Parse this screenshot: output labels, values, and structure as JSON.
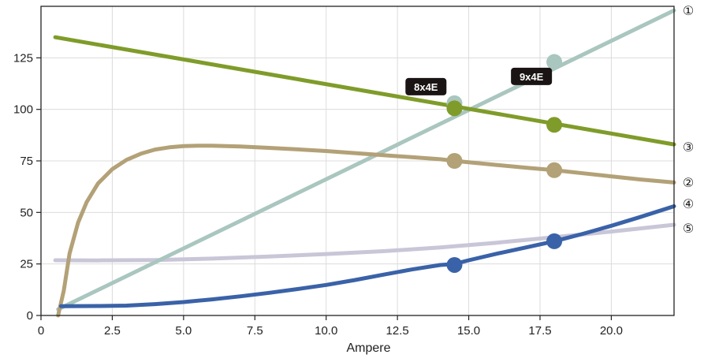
{
  "chart_data": {
    "type": "line",
    "title": "",
    "xlabel": "Ampere",
    "ylabel": "",
    "xlim": [
      0,
      22.2
    ],
    "ylim": [
      0,
      150
    ],
    "grid": true,
    "x_ticks": [
      "0",
      "2.5",
      "5.0",
      "7.5",
      "10.0",
      "12.5",
      "15.0",
      "17.5",
      "20.0"
    ],
    "x_tick_values": [
      0,
      2.5,
      5.0,
      7.5,
      10.0,
      12.5,
      15.0,
      17.5,
      20.0
    ],
    "y_ticks": [
      "0",
      "25",
      "50",
      "75",
      "100",
      "125"
    ],
    "y_tick_values": [
      0,
      25,
      50,
      75,
      100,
      125
    ],
    "series": [
      {
        "name": "①",
        "color": "#a9c6bf",
        "points": [
          [
            0.6,
            3
          ],
          [
            22.2,
            148
          ]
        ],
        "markers": [
          [
            14.5,
            103
          ],
          [
            18.0,
            123
          ]
        ]
      },
      {
        "name": "③",
        "color": "#7f9c2a",
        "points": [
          [
            0.5,
            135
          ],
          [
            22.2,
            83
          ]
        ],
        "markers": [
          [
            14.5,
            100.5
          ],
          [
            18.0,
            92.5
          ]
        ]
      },
      {
        "name": "②",
        "color": "#b3a177",
        "points": [
          [
            0.6,
            0
          ],
          [
            0.8,
            12
          ],
          [
            1.0,
            30
          ],
          [
            1.3,
            45
          ],
          [
            1.6,
            55
          ],
          [
            2.0,
            64
          ],
          [
            2.5,
            71
          ],
          [
            3.0,
            75.5
          ],
          [
            3.5,
            78.5
          ],
          [
            4.0,
            80.5
          ],
          [
            4.5,
            81.6
          ],
          [
            5.0,
            82.2
          ],
          [
            5.5,
            82.4
          ],
          [
            6.0,
            82.4
          ],
          [
            7.0,
            82
          ],
          [
            8.0,
            81.3
          ],
          [
            9.0,
            80.6
          ],
          [
            10.0,
            79.8
          ],
          [
            11.0,
            78.8
          ],
          [
            12.0,
            77.8
          ],
          [
            13.0,
            76.8
          ],
          [
            14.0,
            75.8
          ],
          [
            14.5,
            75
          ],
          [
            15.0,
            74.3
          ],
          [
            16.0,
            73
          ],
          [
            17.0,
            71.7
          ],
          [
            18.0,
            70.5
          ],
          [
            19.0,
            69
          ],
          [
            20.0,
            67.5
          ],
          [
            21.0,
            66
          ],
          [
            22.2,
            64.5
          ]
        ],
        "markers": [
          [
            14.5,
            75
          ],
          [
            18.0,
            70.5
          ]
        ]
      },
      {
        "name": "④",
        "color": "#3a62a8",
        "points": [
          [
            0.7,
            4.5
          ],
          [
            2.0,
            4.6
          ],
          [
            3.0,
            4.8
          ],
          [
            4.0,
            5.5
          ],
          [
            5.0,
            6.5
          ],
          [
            6.0,
            7.8
          ],
          [
            7.0,
            9.3
          ],
          [
            8.0,
            11
          ],
          [
            9.0,
            12.8
          ],
          [
            10.0,
            14.8
          ],
          [
            11.0,
            17.2
          ],
          [
            12.0,
            19.8
          ],
          [
            13.0,
            22.3
          ],
          [
            14.0,
            24.5
          ],
          [
            14.5,
            25
          ],
          [
            15.0,
            26.8
          ],
          [
            16.0,
            30
          ],
          [
            17.0,
            33
          ],
          [
            18.0,
            36
          ],
          [
            19.0,
            39.6
          ],
          [
            20.0,
            43.5
          ],
          [
            21.0,
            47.7
          ],
          [
            22.2,
            53
          ]
        ],
        "markers": [
          [
            14.5,
            24.5
          ],
          [
            18.0,
            36
          ]
        ]
      },
      {
        "name": "⑤",
        "color": "#c9c6d8",
        "points": [
          [
            0.5,
            26.8
          ],
          [
            2.0,
            26.7
          ],
          [
            4.0,
            26.9
          ],
          [
            6.0,
            27.6
          ],
          [
            8.0,
            28.6
          ],
          [
            10.0,
            29.8
          ],
          [
            12.0,
            31.2
          ],
          [
            14.0,
            33
          ],
          [
            16.0,
            35.3
          ],
          [
            18.0,
            38
          ],
          [
            20.0,
            40.7
          ],
          [
            22.2,
            44
          ]
        ],
        "markers": []
      }
    ],
    "annotations": [
      {
        "text": "8x4E",
        "x": 13.5,
        "y": 111
      },
      {
        "text": "9x4E",
        "x": 17.2,
        "y": 116
      }
    ]
  }
}
